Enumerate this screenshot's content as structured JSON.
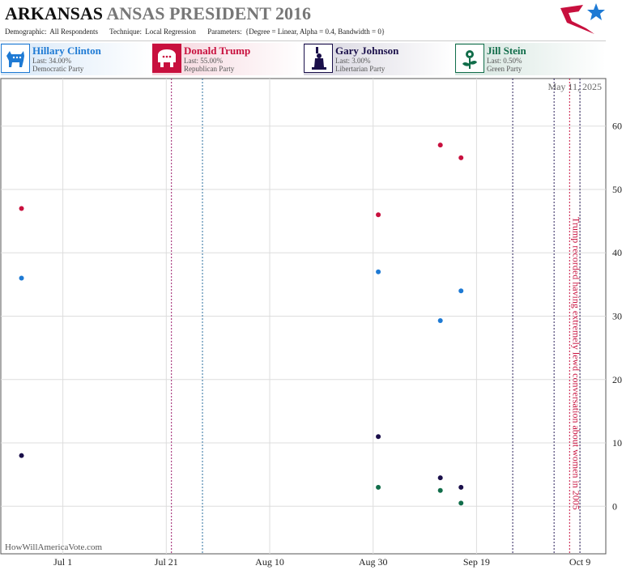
{
  "header": {
    "title_state": "ARKANSAS",
    "title_rest": "ANSAS PRESIDENT 2016",
    "demographic_label": "Demographic:",
    "demographic_value": "All Respondents",
    "technique_label": "Technique:",
    "technique_value": "Local Regression",
    "parameters_label": "Parameters:",
    "parameters_value": "{Degree = Linear, Alpha = 0.4, Bandwidth = 0}"
  },
  "candidates": [
    {
      "name": "Hillary Clinton",
      "last": "Last: 34.00%",
      "party": "Democratic Party",
      "color": "#1e7ad4",
      "icon": "donkey-icon"
    },
    {
      "name": "Donald Trump",
      "last": "Last: 55.00%",
      "party": "Republican Party",
      "color": "#c8103e",
      "icon": "elephant-icon"
    },
    {
      "name": "Gary Johnson",
      "last": "Last: 3.00%",
      "party": "Libertarian Party",
      "color": "#1a0f4a",
      "icon": "statue-of-liberty-icon"
    },
    {
      "name": "Jill Stein",
      "last": "Last: 0.50%",
      "party": "Green Party",
      "color": "#116d4a",
      "icon": "flower-icon"
    }
  ],
  "chart_data": {
    "type": "scatter",
    "date_label": "May 11, 2025",
    "watermark": "HowWillAmericaVote.com",
    "x_ticks": [
      "2016-07-01",
      "2016-07-21",
      "2016-08-10",
      "2016-08-30",
      "2016-09-19",
      "2016-10-09"
    ],
    "x_tick_labels": [
      "Jul 1",
      "Jul 21",
      "Aug 10",
      "Aug 30",
      "Sep 19",
      "Oct 9"
    ],
    "xlim": [
      "2016-06-19",
      "2016-10-14"
    ],
    "ylim": [
      -7.5,
      67.5
    ],
    "y_ticks": [
      0,
      10,
      20,
      30,
      40,
      50,
      60
    ],
    "grid": true,
    "series": [
      {
        "name": "Hillary Clinton",
        "color": "#1e7ad4",
        "points": [
          [
            "2016-06-23",
            36
          ],
          [
            "2016-08-31",
            37
          ],
          [
            "2016-09-12",
            29.3
          ],
          [
            "2016-09-16",
            34
          ]
        ]
      },
      {
        "name": "Donald Trump",
        "color": "#c8103e",
        "points": [
          [
            "2016-06-23",
            47
          ],
          [
            "2016-08-31",
            46
          ],
          [
            "2016-09-12",
            57
          ],
          [
            "2016-09-16",
            55
          ]
        ]
      },
      {
        "name": "Gary Johnson",
        "color": "#1a0f4a",
        "points": [
          [
            "2016-06-23",
            8
          ],
          [
            "2016-08-31",
            11
          ],
          [
            "2016-09-12",
            4.5
          ],
          [
            "2016-09-16",
            3
          ]
        ]
      },
      {
        "name": "Jill Stein",
        "color": "#116d4a",
        "points": [
          [
            "2016-08-31",
            3
          ],
          [
            "2016-09-12",
            2.5
          ],
          [
            "2016-09-16",
            0.5
          ]
        ]
      }
    ],
    "event_lines": [
      {
        "date": "2016-07-22",
        "color": "#9a1c6b"
      },
      {
        "date": "2016-07-28",
        "color": "#2a6d9e"
      },
      {
        "date": "2016-09-26",
        "color": "#2a1f5a"
      },
      {
        "date": "2016-10-04",
        "color": "#2a1f5a"
      },
      {
        "date": "2016-10-07",
        "color": "#c8103e"
      },
      {
        "date": "2016-10-09",
        "color": "#2a1f5a"
      }
    ],
    "annotation": {
      "text": "Trump recorded having extremely lewd conversation about women in 2005",
      "date": "2016-10-07",
      "color": "#c8103e"
    }
  }
}
